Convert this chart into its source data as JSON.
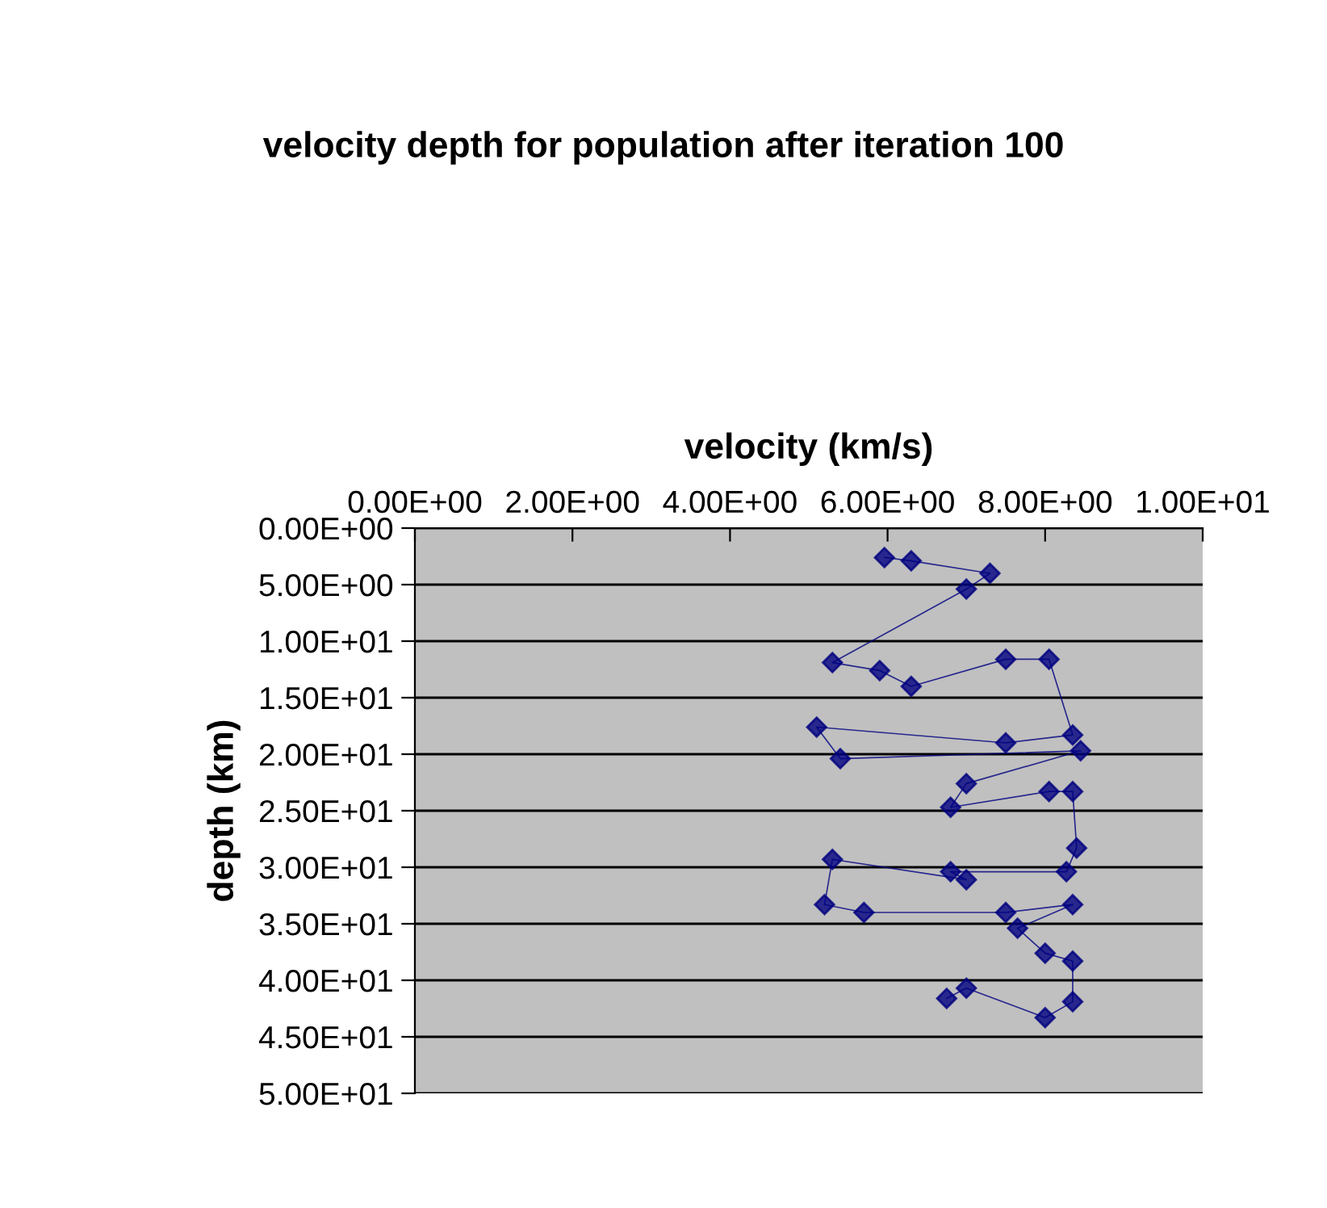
{
  "chart_data": {
    "type": "line",
    "title": "velocity depth for population after iteration 100",
    "xlabel": "velocity (km/s)",
    "ylabel": "depth (km)",
    "x": [
      5.96,
      6.3,
      7.3,
      7.0,
      5.3,
      5.9,
      6.3,
      7.5,
      8.05,
      8.35,
      7.5,
      5.1,
      5.4,
      8.45,
      7.0,
      6.8,
      8.05,
      8.35,
      8.4,
      8.27,
      6.8,
      7.0,
      5.3,
      5.2,
      5.7,
      7.5,
      8.35,
      7.65,
      8.0,
      8.35,
      8.35,
      8.0,
      7.0,
      6.75
    ],
    "values": [
      2.6,
      2.9,
      4.0,
      5.4,
      11.9,
      12.6,
      14.0,
      11.6,
      11.6,
      18.3,
      19.0,
      17.6,
      20.4,
      19.7,
      22.6,
      24.7,
      23.3,
      23.3,
      28.3,
      30.4,
      30.4,
      31.1,
      29.3,
      33.3,
      34.0,
      34.0,
      33.3,
      35.4,
      37.6,
      38.3,
      41.9,
      43.3,
      40.7,
      41.6
    ],
    "color": "#000080",
    "marker": "diamond",
    "line_style": "solid",
    "grid": "y",
    "legend": false,
    "xlim": [
      0,
      10
    ],
    "xticks": [
      {
        "value": 0,
        "label": "0.00E+00"
      },
      {
        "value": 2,
        "label": "2.00E+00"
      },
      {
        "value": 4,
        "label": "4.00E+00"
      },
      {
        "value": 6,
        "label": "6.00E+00"
      },
      {
        "value": 8,
        "label": "8.00E+00"
      },
      {
        "value": 10,
        "label": "1.00E+01"
      }
    ],
    "ylim": [
      50,
      0
    ],
    "yticks": [
      {
        "value": 0,
        "label": "0.00E+00"
      },
      {
        "value": 5,
        "label": "5.00E+00"
      },
      {
        "value": 10,
        "label": "1.00E+01"
      },
      {
        "value": 15,
        "label": "1.50E+01"
      },
      {
        "value": 20,
        "label": "2.00E+01"
      },
      {
        "value": 25,
        "label": "2.50E+01"
      },
      {
        "value": 30,
        "label": "3.00E+01"
      },
      {
        "value": 35,
        "label": "3.50E+01"
      },
      {
        "value": 40,
        "label": "4.00E+01"
      },
      {
        "value": 45,
        "label": "4.50E+01"
      },
      {
        "value": 50,
        "label": "5.00E+01"
      }
    ]
  }
}
